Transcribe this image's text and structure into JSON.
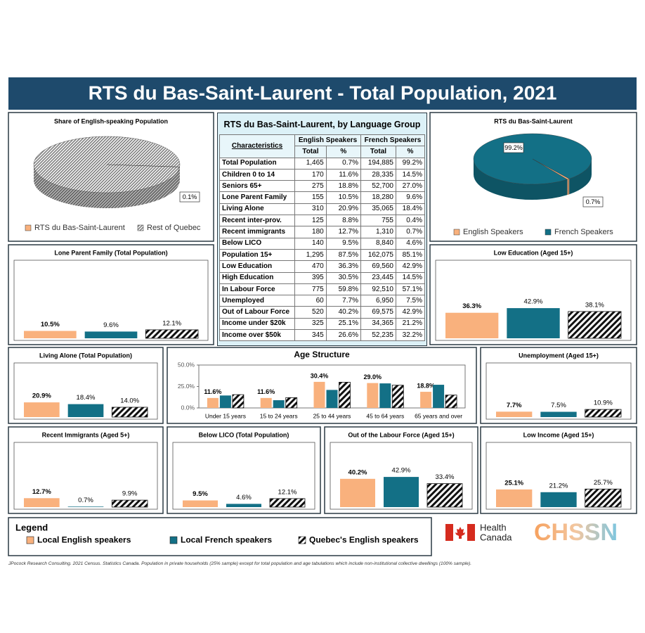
{
  "title": "RTS du Bas-Saint-Laurent - Total Population, 2021",
  "table": {
    "title": "RTS du Bas-Saint-Laurent, by Language Group",
    "header": [
      "Characteristics",
      "English Speakers",
      "French Speakers"
    ],
    "subheader": [
      "Total",
      "%",
      "Total",
      "%"
    ],
    "rows": [
      [
        "Total Population",
        "1,465",
        "0.7%",
        "194,885",
        "99.2%"
      ],
      [
        "Children 0 to 14",
        "170",
        "11.6%",
        "28,335",
        "14.5%"
      ],
      [
        "Seniors 65+",
        "275",
        "18.8%",
        "52,700",
        "27.0%"
      ],
      [
        "Lone Parent Family",
        "155",
        "10.5%",
        "18,280",
        "9.6%"
      ],
      [
        "Living Alone",
        "310",
        "20.9%",
        "35,065",
        "18.4%"
      ],
      [
        "Recent inter-prov.",
        "125",
        "8.8%",
        "755",
        "0.4%"
      ],
      [
        "Recent immigrants",
        "180",
        "12.7%",
        "1,310",
        "0.7%"
      ],
      [
        "Below LICO",
        "140",
        "9.5%",
        "8,840",
        "4.6%"
      ],
      [
        "Population 15+",
        "1,295",
        "87.5%",
        "162,075",
        "85.1%"
      ],
      [
        "Low Education",
        "470",
        "36.3%",
        "69,560",
        "42.9%"
      ],
      [
        "High Education",
        "395",
        "30.5%",
        "23,445",
        "14.5%"
      ],
      [
        "In Labour Force",
        "775",
        "59.8%",
        "92,510",
        "57.1%"
      ],
      [
        "Unemployed",
        "60",
        "7.7%",
        "6,950",
        "7.5%"
      ],
      [
        "Out of Labour Force",
        "520",
        "40.2%",
        "69,575",
        "42.9%"
      ],
      [
        "Income under $20k",
        "325",
        "25.1%",
        "34,365",
        "21.2%"
      ],
      [
        "Income over $50k",
        "345",
        "26.6%",
        "52,235",
        "32.2%"
      ]
    ]
  },
  "legend": {
    "title": "Legend",
    "items": [
      "Local English speakers",
      "Local French speakers",
      "Quebec's English speakers"
    ],
    "colors": [
      "#f9b17d",
      "#137086",
      "hatch"
    ]
  },
  "logos": {
    "health": [
      "Health",
      "Canada"
    ],
    "partner": "CHSSN"
  },
  "footnote": "JPocock Research Consulting. 2021 Census. Statistics Canada. Population in private households (25% sample) except for total population and age tabulations which include non-institutional collective dwellings (100% sample).",
  "chart_data": [
    {
      "type": "pie",
      "title": "Share of English-speaking Population",
      "categories": [
        "RTS du Bas-Saint-Laurent",
        "Rest of Quebec"
      ],
      "values": [
        0.1,
        99.9
      ],
      "value_labels": [
        "0.1%",
        null
      ],
      "colors": [
        "#f9b17d",
        "hatch-fine"
      ]
    },
    {
      "type": "pie",
      "title": "RTS du Bas-Saint-Laurent",
      "categories": [
        "English Speakers",
        "French Speakers"
      ],
      "values": [
        0.7,
        99.2
      ],
      "value_labels": [
        "0.7%",
        "99.2%"
      ],
      "colors": [
        "#f9b17d",
        "#137086"
      ]
    },
    {
      "type": "bar",
      "title": "Lone Parent Family (Total Population)",
      "values": [
        10.5,
        9.6,
        12.1
      ],
      "value_labels": [
        "10.5%",
        "9.6%",
        "12.1%"
      ],
      "colors": [
        "#f9b17d",
        "#137086",
        "hatch"
      ]
    },
    {
      "type": "bar",
      "title": "Low Education (Aged 15+)",
      "values": [
        36.3,
        42.9,
        38.1
      ],
      "value_labels": [
        "36.3%",
        "42.9%",
        "38.1%"
      ],
      "colors": [
        "#f9b17d",
        "#137086",
        "hatch"
      ]
    },
    {
      "type": "bar",
      "title": "Living Alone (Total Population)",
      "values": [
        20.9,
        18.4,
        14.0
      ],
      "value_labels": [
        "20.9%",
        "18.4%",
        "14.0%"
      ],
      "colors": [
        "#f9b17d",
        "#137086",
        "hatch"
      ]
    },
    {
      "type": "grouped-bar",
      "title": "Age Structure",
      "categories": [
        "Under 15 years",
        "15 to 24 years",
        "25 to 44 years",
        "45 to 64 years",
        "65 years and over"
      ],
      "series": [
        {
          "color": "#f9b17d",
          "values": [
            11.6,
            11.6,
            30.4,
            29.0,
            18.8
          ],
          "value_labels": [
            "11.6%",
            "11.6%",
            "30.4%",
            "29.0%",
            "18.8%"
          ]
        },
        {
          "color": "#137086",
          "values": [
            14.5,
            9.0,
            21.0,
            28.6,
            27.0
          ]
        },
        {
          "color": "hatch",
          "values": [
            15.5,
            12.0,
            30.0,
            26.5,
            15.0
          ]
        }
      ],
      "ylim": [
        0,
        50
      ],
      "yticks": [
        {
          "value": 0,
          "label": "0.0%"
        },
        {
          "value": 25,
          "label": "25.0%"
        },
        {
          "value": 50,
          "label": "50.0%"
        }
      ]
    },
    {
      "type": "bar",
      "title": "Unemployment (Aged 15+)",
      "values": [
        7.7,
        7.5,
        10.9
      ],
      "value_labels": [
        "7.7%",
        "7.5%",
        "10.9%"
      ],
      "colors": [
        "#f9b17d",
        "#137086",
        "hatch"
      ]
    },
    {
      "type": "bar",
      "title": "Recent Immigrants (Aged 5+)",
      "values": [
        12.7,
        0.7,
        9.9
      ],
      "value_labels": [
        "12.7%",
        "0.7%",
        "9.9%"
      ],
      "colors": [
        "#f9b17d",
        "#137086",
        "hatch"
      ]
    },
    {
      "type": "bar",
      "title": "Below LICO (Total Population)",
      "values": [
        9.5,
        4.6,
        12.1
      ],
      "value_labels": [
        "9.5%",
        "4.6%",
        "12.1%"
      ],
      "colors": [
        "#f9b17d",
        "#137086",
        "hatch"
      ]
    },
    {
      "type": "bar",
      "title": "Out of the Labour Force (Aged 15+)",
      "values": [
        40.2,
        42.9,
        33.4
      ],
      "value_labels": [
        "40.2%",
        "42.9%",
        "33.4%"
      ],
      "colors": [
        "#f9b17d",
        "#137086",
        "hatch"
      ]
    },
    {
      "type": "bar",
      "title": "Low Income (Aged 15+)",
      "values": [
        25.1,
        21.2,
        25.7
      ],
      "value_labels": [
        "25.1%",
        "21.2%",
        "25.7%"
      ],
      "colors": [
        "#f9b17d",
        "#137086",
        "hatch"
      ]
    }
  ]
}
